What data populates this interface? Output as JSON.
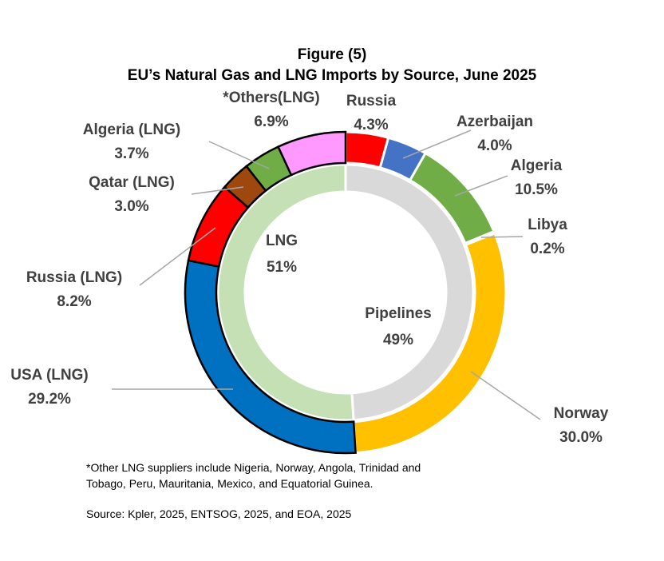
{
  "title": "Figure (5)",
  "subtitle": "EU’s Natural Gas and LNG Imports by Source, June 2025",
  "chart_data": {
    "type": "pie",
    "subtype": "nested-donut",
    "title": "EU’s Natural Gas and LNG Imports by Source, June 2025",
    "inner_ring": [
      {
        "name": "Pipelines",
        "label": "49%",
        "value": 49,
        "color": "#d9d9d9"
      },
      {
        "name": "LNG",
        "label": "51%",
        "value": 51,
        "color": "#c5e0b4"
      }
    ],
    "outer_ring": [
      {
        "name": "Russia",
        "label": "4.3%",
        "value": 4.3,
        "color": "#ff0000",
        "group": "Pipelines"
      },
      {
        "name": "Azerbaijan",
        "label": "4.0%",
        "value": 4.0,
        "color": "#4472c4",
        "group": "Pipelines"
      },
      {
        "name": "Algeria",
        "label": "10.5%",
        "value": 10.5,
        "color": "#70ad47",
        "group": "Pipelines"
      },
      {
        "name": "Libya",
        "label": "0.2%",
        "value": 0.2,
        "color": "#a5a5a5",
        "group": "Pipelines"
      },
      {
        "name": "Norway",
        "label": "30.0%",
        "value": 30.0,
        "color": "#ffc000",
        "group": "Pipelines"
      },
      {
        "name": "USA (LNG)",
        "label": "29.2%",
        "value": 29.2,
        "color": "#0070c0",
        "group": "LNG"
      },
      {
        "name": "Russia (LNG)",
        "label": "8.2%",
        "value": 8.2,
        "color": "#ff0000",
        "group": "LNG"
      },
      {
        "name": "Qatar (LNG)",
        "label": "3.0%",
        "value": 3.0,
        "color": "#9e480e",
        "group": "LNG"
      },
      {
        "name": "Algeria  (LNG)",
        "label": "3.7%",
        "value": 3.7,
        "color": "#70ad47",
        "group": "LNG"
      },
      {
        "name": "*Others(LNG)",
        "label": "6.9%",
        "value": 6.9,
        "color": "#ff99ff",
        "group": "LNG"
      }
    ]
  },
  "footnote_line1": "*Other LNG suppliers include Nigeria, Norway, Angola, Trinidad and",
  "footnote_line2": "Tobago, Peru, Mauritania, Mexico, and Equatorial Guinea.",
  "source": "Source: Kpler, 2025, ENTSOG, 2025, and EOA, 2025"
}
